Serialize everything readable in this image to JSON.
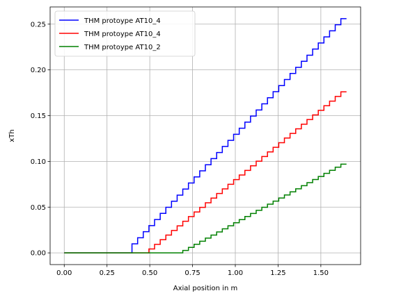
{
  "chart_data": {
    "type": "line",
    "step": true,
    "xlabel": "Axial position in m",
    "ylabel": "xTh",
    "xlim": [
      -0.0825,
      1.7325
    ],
    "ylim": [
      -0.0128,
      0.2688
    ],
    "xticks": [
      0.0,
      0.25,
      0.5,
      0.75,
      1.0,
      1.25,
      1.5
    ],
    "xtick_labels": [
      "0.00",
      "0.25",
      "0.50",
      "0.75",
      "1.00",
      "1.25",
      "1.50"
    ],
    "yticks": [
      0.0,
      0.05,
      0.1,
      0.15,
      0.2,
      0.25
    ],
    "ytick_labels": [
      "0.00",
      "0.05",
      "0.10",
      "0.15",
      "0.20",
      "0.25"
    ],
    "grid": true,
    "legend_position": "top-left",
    "series": [
      {
        "name": "THM protoype AT10_4",
        "color": "#0000ff",
        "x_start": 0.0,
        "x_end": 1.65,
        "onset_x": 0.38,
        "y_end": 0.256,
        "steps": 50
      },
      {
        "name": "THM protoype AT10_4",
        "color": "#ff0000",
        "x_start": 0.0,
        "x_end": 1.65,
        "onset_x": 0.5,
        "y_end": 0.176,
        "steps": 50
      },
      {
        "name": "THM protoype AT10_2",
        "color": "#008000",
        "x_start": 0.0,
        "x_end": 1.65,
        "onset_x": 0.7,
        "y_end": 0.097,
        "steps": 50
      }
    ]
  }
}
